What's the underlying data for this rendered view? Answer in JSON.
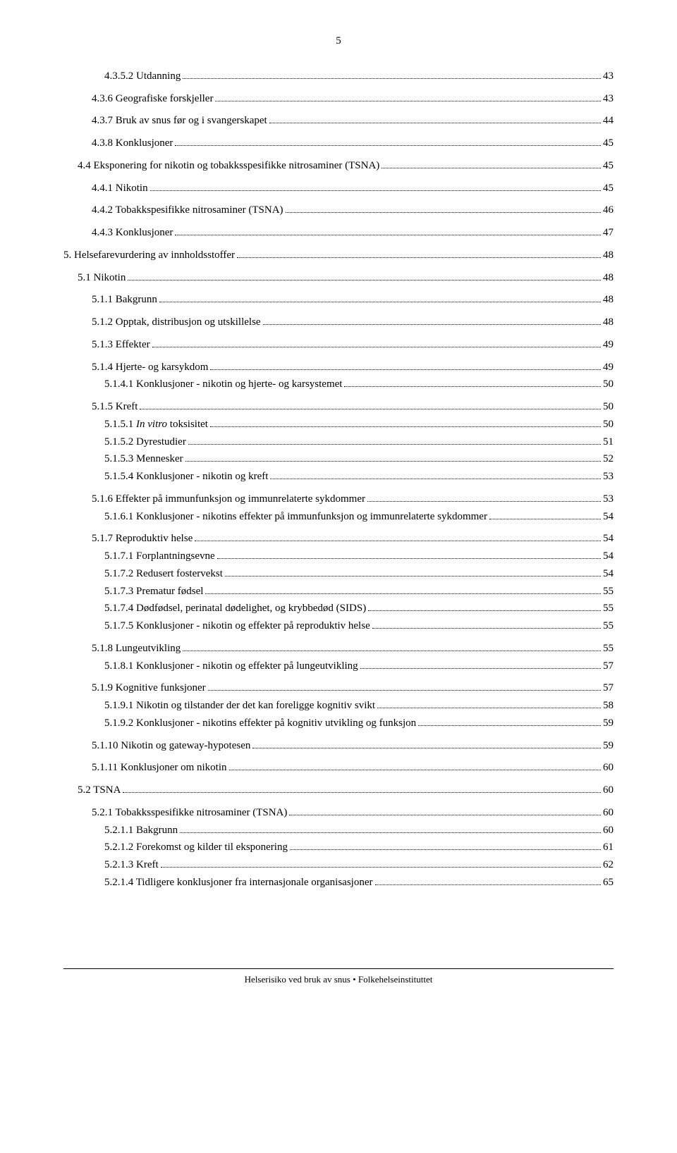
{
  "page_number": "5",
  "footer_text": "Helserisiko ved bruk av snus • Folkehelseinstituttet",
  "toc": [
    {
      "label": "4.3.5.2 Utdanning",
      "page": "43",
      "level": 3,
      "gap": false
    },
    {
      "label": "4.3.6 Geografiske forskjeller",
      "page": "43",
      "level": 2,
      "gap": true
    },
    {
      "label": "4.3.7 Bruk av snus før og i svangerskapet",
      "page": "44",
      "level": 2,
      "gap": true
    },
    {
      "label": "4.3.8 Konklusjoner",
      "page": "45",
      "level": 2,
      "gap": true
    },
    {
      "label": "4.4 Eksponering for nikotin og tobakksspesifikke nitrosaminer (TSNA)",
      "page": "45",
      "level": 1,
      "gap": true
    },
    {
      "label": "4.4.1 Nikotin",
      "page": "45",
      "level": 2,
      "gap": true
    },
    {
      "label": "4.4.2 Tobakkspesifikke nitrosaminer (TSNA)",
      "page": "46",
      "level": 2,
      "gap": true
    },
    {
      "label": "4.4.3 Konklusjoner",
      "page": "47",
      "level": 2,
      "gap": true
    },
    {
      "label": "5.    Helsefarevurdering av innholdsstoffer",
      "page": "48",
      "level": 0,
      "gap": true
    },
    {
      "label": "5.1 Nikotin",
      "page": "48",
      "level": 1,
      "gap": true
    },
    {
      "label": "5.1.1 Bakgrunn",
      "page": "48",
      "level": 2,
      "gap": true
    },
    {
      "label": "5.1.2 Opptak, distribusjon og utskillelse",
      "page": "48",
      "level": 2,
      "gap": true
    },
    {
      "label": "5.1.3 Effekter",
      "page": "49",
      "level": 2,
      "gap": true
    },
    {
      "label": "5.1.4 Hjerte- og karsykdom",
      "page": "49",
      "level": 2,
      "gap": true
    },
    {
      "label": "5.1.4.1 Konklusjoner - nikotin og hjerte- og karsystemet",
      "page": "50",
      "level": 3,
      "gap": false
    },
    {
      "label": "5.1.5 Kreft",
      "page": "50",
      "level": 2,
      "gap": true
    },
    {
      "label": "5.1.5.1 In vitro toksisitet",
      "page": "50",
      "level": 3,
      "gap": false,
      "italic_range": [
        8,
        16
      ]
    },
    {
      "label": "5.1.5.2 Dyrestudier",
      "page": "51",
      "level": 3,
      "gap": false
    },
    {
      "label": "5.1.5.3 Mennesker",
      "page": "52",
      "level": 3,
      "gap": false
    },
    {
      "label": "5.1.5.4 Konklusjoner - nikotin og kreft",
      "page": "53",
      "level": 3,
      "gap": false
    },
    {
      "label": "5.1.6 Effekter på immunfunksjon og immunrelaterte sykdommer",
      "page": "53",
      "level": 2,
      "gap": true
    },
    {
      "label": "5.1.6.1 Konklusjoner - nikotins effekter på immunfunksjon og immunrelaterte sykdommer",
      "page": "54",
      "level": 3,
      "gap": false
    },
    {
      "label": "5.1.7 Reproduktiv helse",
      "page": "54",
      "level": 2,
      "gap": true
    },
    {
      "label": "5.1.7.1 Forplantningsevne",
      "page": "54",
      "level": 3,
      "gap": false
    },
    {
      "label": "5.1.7.2 Redusert fostervekst",
      "page": "54",
      "level": 3,
      "gap": false
    },
    {
      "label": "5.1.7.3 Prematur fødsel",
      "page": "55",
      "level": 3,
      "gap": false
    },
    {
      "label": "5.1.7.4 Dødfødsel, perinatal dødelighet, og krybbedød (SIDS)",
      "page": "55",
      "level": 3,
      "gap": false
    },
    {
      "label": "5.1.7.5 Konklusjoner - nikotin og effekter på reproduktiv helse",
      "page": "55",
      "level": 3,
      "gap": false
    },
    {
      "label": "5.1.8 Lungeutvikling",
      "page": "55",
      "level": 2,
      "gap": true
    },
    {
      "label": "5.1.8.1 Konklusjoner - nikotin og effekter på lungeutvikling",
      "page": "57",
      "level": 3,
      "gap": false
    },
    {
      "label": "5.1.9 Kognitive funksjoner",
      "page": "57",
      "level": 2,
      "gap": true
    },
    {
      "label": "5.1.9.1 Nikotin og tilstander der det kan foreligge kognitiv svikt",
      "page": "58",
      "level": 3,
      "gap": false
    },
    {
      "label": "5.1.9.2 Konklusjoner - nikotins effekter på kognitiv utvikling og funksjon",
      "page": "59",
      "level": 3,
      "gap": false
    },
    {
      "label": "5.1.10 Nikotin og gateway-hypotesen",
      "page": "59",
      "level": 2,
      "gap": true
    },
    {
      "label": "5.1.11 Konklusjoner om nikotin",
      "page": "60",
      "level": 2,
      "gap": true
    },
    {
      "label": "5.2 TSNA",
      "page": "60",
      "level": 1,
      "gap": true
    },
    {
      "label": "5.2.1 Tobakksspesifikke nitrosaminer (TSNA)",
      "page": "60",
      "level": 2,
      "gap": true
    },
    {
      "label": "5.2.1.1 Bakgrunn",
      "page": "60",
      "level": 3,
      "gap": false
    },
    {
      "label": "5.2.1.2 Forekomst og kilder til eksponering",
      "page": "61",
      "level": 3,
      "gap": false
    },
    {
      "label": "5.2.1.3 Kreft",
      "page": "62",
      "level": 3,
      "gap": false
    },
    {
      "label": "5.2.1.4 Tidligere konklusjoner fra internasjonale organisasjoner",
      "page": "65",
      "level": 3,
      "gap": false
    }
  ]
}
